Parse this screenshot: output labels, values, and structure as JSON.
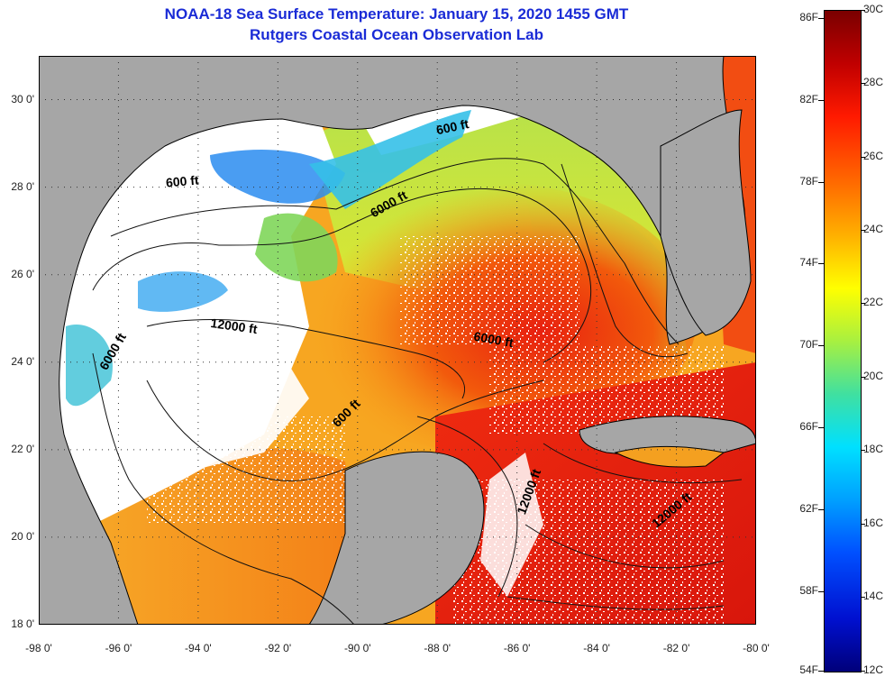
{
  "title_line1": "NOAA-18 Sea Surface Temperature:  January 15, 2020 1455 GMT",
  "title_line2": "Rutgers Coastal Ocean Observation Lab",
  "map": {
    "lon_range": [
      -98,
      -80
    ],
    "lat_range": [
      18,
      31
    ],
    "lat_ticks": [
      {
        "value": 30,
        "label": "30 0'"
      },
      {
        "value": 28,
        "label": "28 0'"
      },
      {
        "value": 26,
        "label": "26 0'"
      },
      {
        "value": 24,
        "label": "24 0'"
      },
      {
        "value": 22,
        "label": "22 0'"
      },
      {
        "value": 20,
        "label": "20 0'"
      },
      {
        "value": 18,
        "label": "18 0'"
      }
    ],
    "lon_ticks": [
      {
        "value": -98,
        "label": "-98 0'"
      },
      {
        "value": -96,
        "label": "-96 0'"
      },
      {
        "value": -94,
        "label": "-94 0'"
      },
      {
        "value": -92,
        "label": "-92 0'"
      },
      {
        "value": -90,
        "label": "-90 0'"
      },
      {
        "value": -88,
        "label": "-88 0'"
      },
      {
        "value": -86,
        "label": "-86 0'"
      },
      {
        "value": -84,
        "label": "-84 0'"
      },
      {
        "value": -82,
        "label": "-82 0'"
      },
      {
        "value": -80,
        "label": "-80 0'"
      }
    ],
    "contour_labels": [
      {
        "text": "600 ft",
        "lon": -94.8,
        "lat": 28.0,
        "rotate": -5
      },
      {
        "text": "600 ft",
        "lon": -88.0,
        "lat": 29.2,
        "rotate": -12
      },
      {
        "text": "6000 ft",
        "lon": -89.6,
        "lat": 27.3,
        "rotate": -30
      },
      {
        "text": "12000 ft",
        "lon": -93.7,
        "lat": 24.8,
        "rotate": 8
      },
      {
        "text": "6000 ft",
        "lon": -87.1,
        "lat": 24.5,
        "rotate": 10
      },
      {
        "text": "6000 ft",
        "lon": -96.3,
        "lat": 23.8,
        "rotate": -60
      },
      {
        "text": "600 ft",
        "lon": -90.5,
        "lat": 22.5,
        "rotate": -45
      },
      {
        "text": "12000 ft",
        "lon": -85.8,
        "lat": 20.5,
        "rotate": -70
      },
      {
        "text": "12000 ft",
        "lon": -82.5,
        "lat": 20.2,
        "rotate": -40
      }
    ],
    "colors": {
      "land": "#a6a6a6",
      "cloud": "#ffffff",
      "grid": "#333333"
    }
  },
  "colorbar": {
    "f_labels": [
      {
        "label": "86F",
        "pos": 0.012
      },
      {
        "label": "82F",
        "pos": 0.136
      },
      {
        "label": "78F",
        "pos": 0.26
      },
      {
        "label": "74F",
        "pos": 0.384
      },
      {
        "label": "70F",
        "pos": 0.508
      },
      {
        "label": "66F",
        "pos": 0.632
      },
      {
        "label": "62F",
        "pos": 0.756
      },
      {
        "label": "58F",
        "pos": 0.88
      },
      {
        "label": "54F",
        "pos": 1.0
      }
    ],
    "c_labels": [
      {
        "label": "30C",
        "pos": 0.0
      },
      {
        "label": "28C",
        "pos": 0.111
      },
      {
        "label": "26C",
        "pos": 0.222
      },
      {
        "label": "24C",
        "pos": 0.333
      },
      {
        "label": "22C",
        "pos": 0.444
      },
      {
        "label": "20C",
        "pos": 0.555
      },
      {
        "label": "18C",
        "pos": 0.666
      },
      {
        "label": "16C",
        "pos": 0.777
      },
      {
        "label": "14C",
        "pos": 0.888
      },
      {
        "label": "12C",
        "pos": 1.0
      }
    ]
  }
}
